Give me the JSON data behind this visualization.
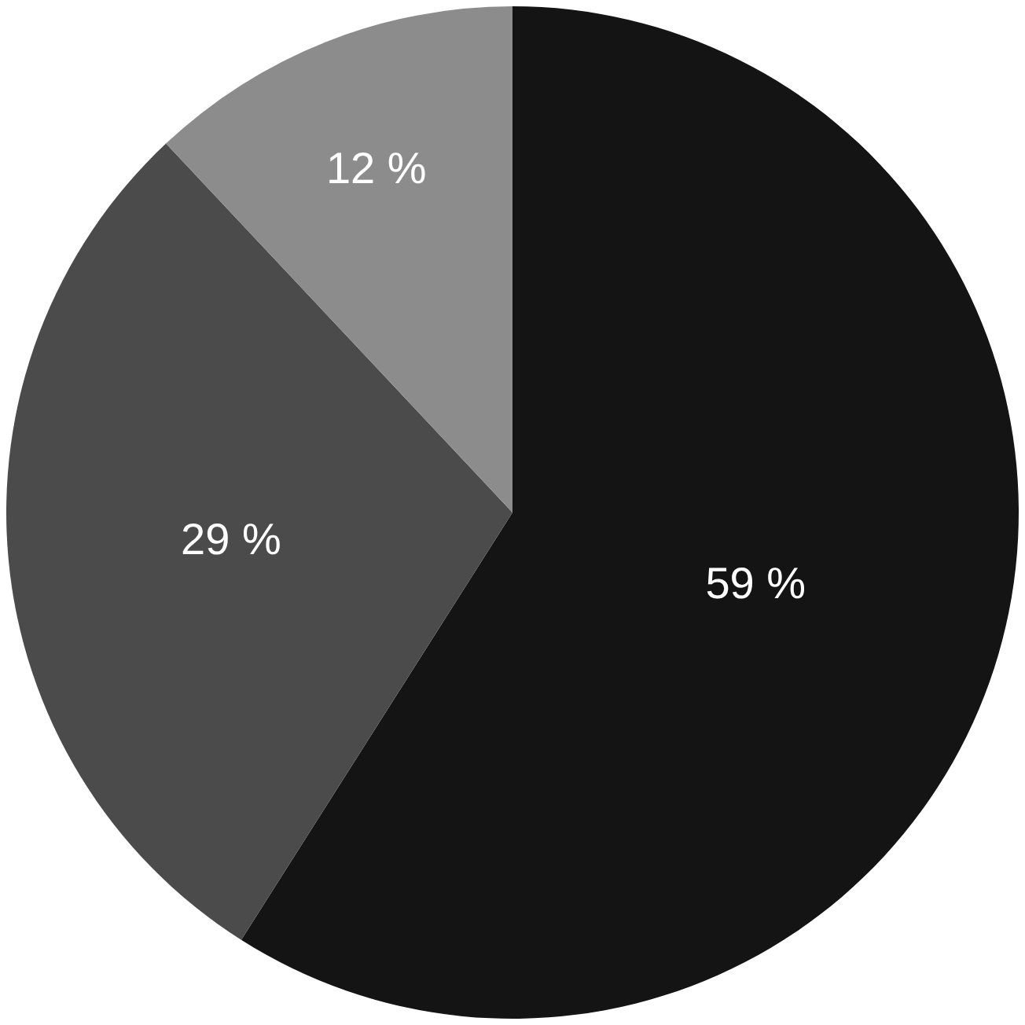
{
  "chart_data": {
    "type": "pie",
    "categories": [
      null,
      null,
      null
    ],
    "values": [
      59,
      29,
      12
    ],
    "value_labels": [
      "59 %",
      "29 %",
      "12 %"
    ],
    "colors": [
      "#141414",
      "#4b4b4b",
      "#8c8c8c"
    ],
    "legend": false
  }
}
